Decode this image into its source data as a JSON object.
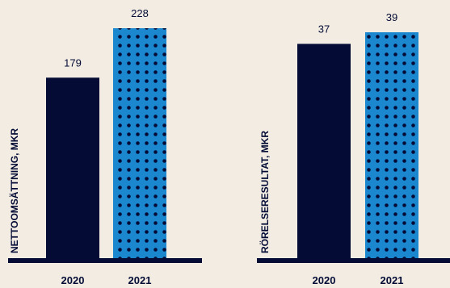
{
  "colors": {
    "background": "#f2ece2",
    "navy": "#040c36",
    "blue": "#1a87cf",
    "dot": "#040c36"
  },
  "chart_data": [
    {
      "type": "bar",
      "ylabel": "NETTOOMSÄTTNING, MKR",
      "categories": [
        "2020",
        "2021"
      ],
      "values": [
        179,
        228
      ],
      "value_labels": [
        "179",
        "228"
      ],
      "bar_styles": [
        "solid-navy",
        "blue-dotted"
      ],
      "ylim": [
        0,
        228
      ],
      "grid": false,
      "legend": "none"
    },
    {
      "type": "bar",
      "ylabel": "RÖRELSERESULTAT, MKR",
      "categories": [
        "2020",
        "2021"
      ],
      "values": [
        37,
        39
      ],
      "value_labels": [
        "37",
        "39"
      ],
      "bar_styles": [
        "solid-navy",
        "blue-dotted"
      ],
      "ylim": [
        0,
        39
      ],
      "grid": false,
      "legend": "none"
    }
  ]
}
